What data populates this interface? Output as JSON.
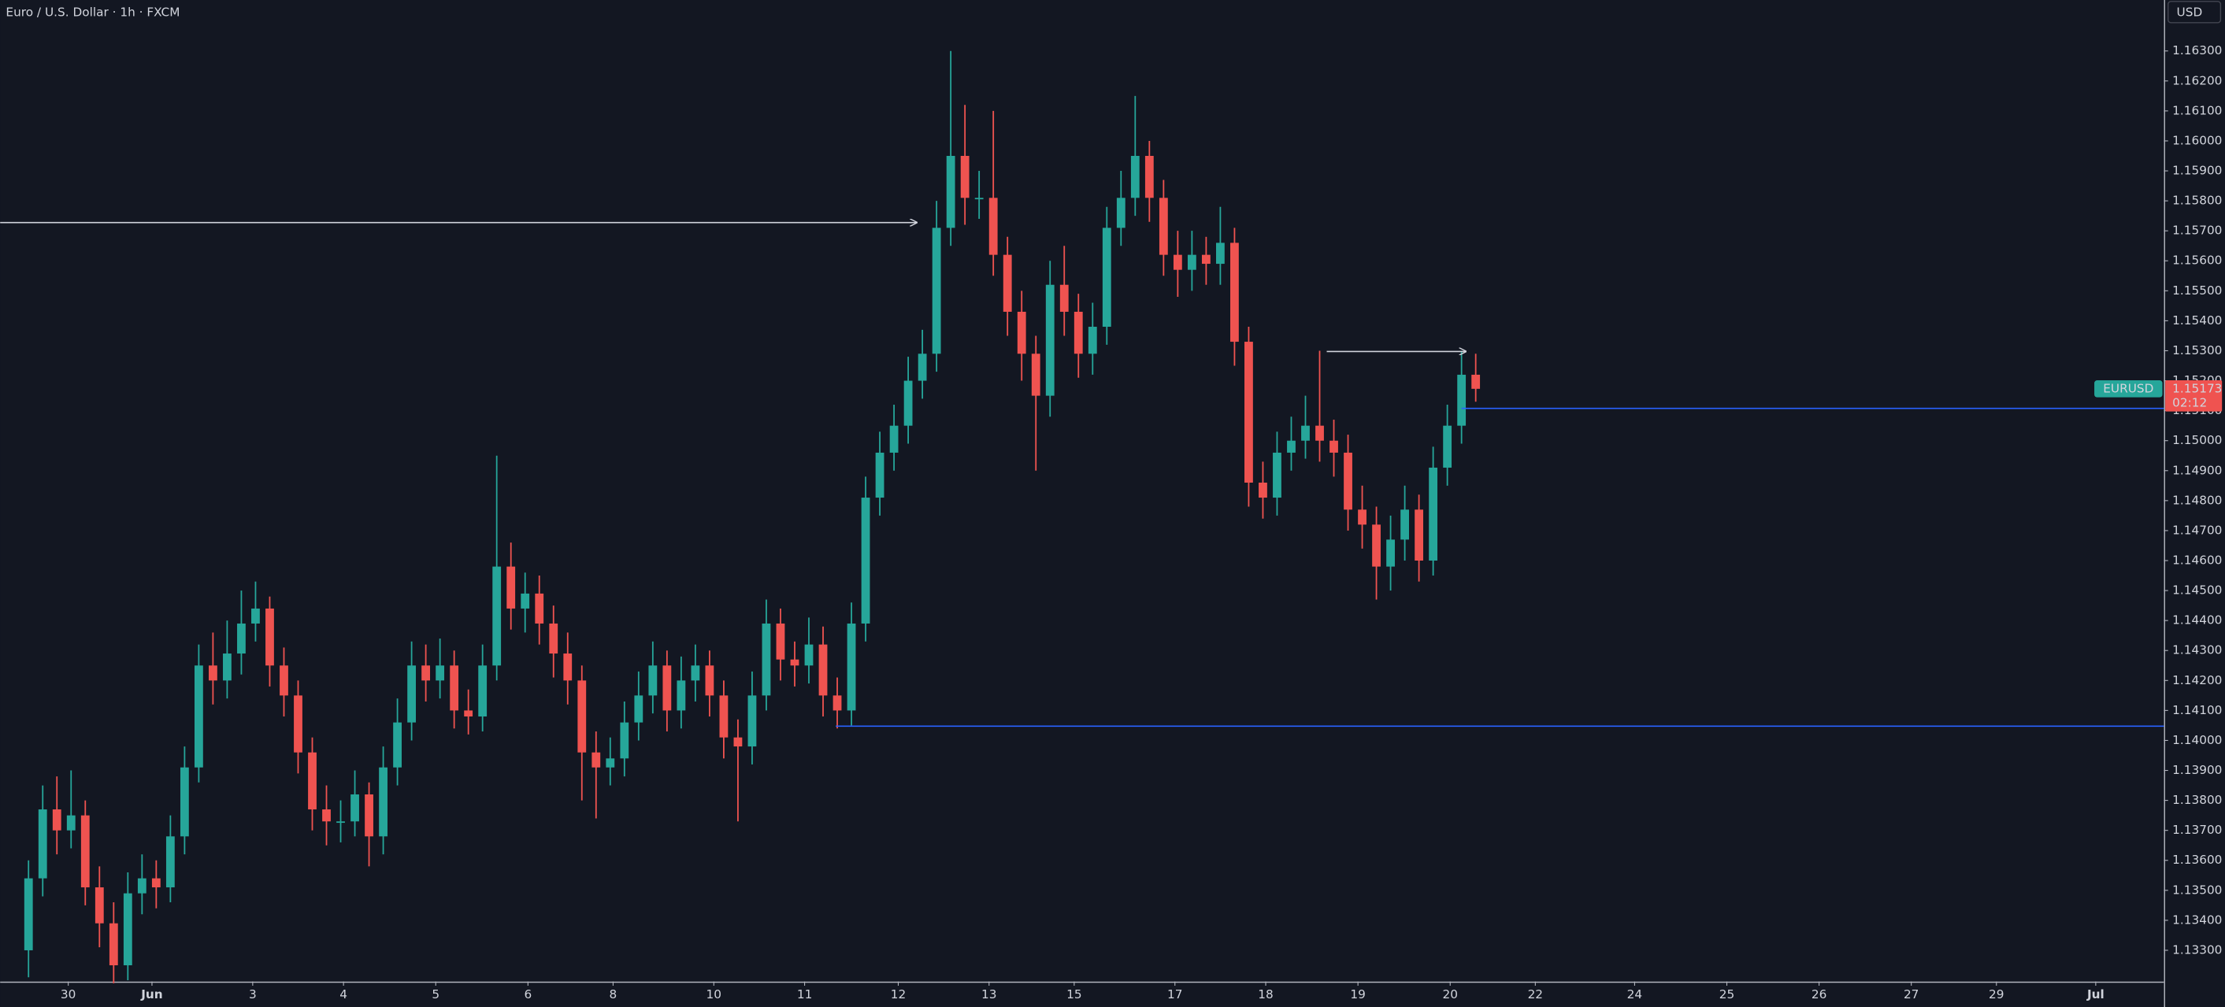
{
  "chart_data": {
    "type": "candlestick",
    "title": "Euro / U.S. Dollar · 1h · FXCM",
    "currency": "USD",
    "symbol": "EURUSD",
    "countdown": "02:12",
    "up_color": "#26a69a",
    "down_color": "#ef5350",
    "xlim": [
      -2,
      150.5
    ],
    "ylim": [
      1.13196,
      1.1647
    ],
    "xticks": [
      {
        "value": 2.8,
        "label": "30"
      },
      {
        "value": 8.7,
        "label": "Jun"
      },
      {
        "value": 15.8,
        "label": "3"
      },
      {
        "value": 22.2,
        "label": "4"
      },
      {
        "value": 28.7,
        "label": "5"
      },
      {
        "value": 35.2,
        "label": "6"
      },
      {
        "value": 41.2,
        "label": "8"
      },
      {
        "value": 48.3,
        "label": "10"
      },
      {
        "value": 54.7,
        "label": "11"
      },
      {
        "value": 61.3,
        "label": "12"
      },
      {
        "value": 67.7,
        "label": "13"
      },
      {
        "value": 73.7,
        "label": "15"
      },
      {
        "value": 80.8,
        "label": "17"
      },
      {
        "value": 87.2,
        "label": "18"
      },
      {
        "value": 93.7,
        "label": "19"
      },
      {
        "value": 100.2,
        "label": "20"
      },
      {
        "value": 106.2,
        "label": "22"
      },
      {
        "value": 113.2,
        "label": "24"
      },
      {
        "value": 119.7,
        "label": "25"
      },
      {
        "value": 126.2,
        "label": "26"
      },
      {
        "value": 132.7,
        "label": "27"
      },
      {
        "value": 138.7,
        "label": "29"
      },
      {
        "value": 145.7,
        "label": "Jul"
      }
    ],
    "yticks": [
      {
        "value": 1.133,
        "label": "1.13300"
      },
      {
        "value": 1.134,
        "label": "1.13400"
      },
      {
        "value": 1.135,
        "label": "1.13500"
      },
      {
        "value": 1.136,
        "label": "1.13600"
      },
      {
        "value": 1.137,
        "label": "1.13700"
      },
      {
        "value": 1.138,
        "label": "1.13800"
      },
      {
        "value": 1.139,
        "label": "1.13900"
      },
      {
        "value": 1.14,
        "label": "1.14000"
      },
      {
        "value": 1.141,
        "label": "1.14100"
      },
      {
        "value": 1.142,
        "label": "1.14200"
      },
      {
        "value": 1.143,
        "label": "1.14300"
      },
      {
        "value": 1.144,
        "label": "1.14400"
      },
      {
        "value": 1.145,
        "label": "1.14500"
      },
      {
        "value": 1.146,
        "label": "1.14600"
      },
      {
        "value": 1.147,
        "label": "1.14700"
      },
      {
        "value": 1.148,
        "label": "1.14800"
      },
      {
        "value": 1.149,
        "label": "1.14900"
      },
      {
        "value": 1.15,
        "label": "1.15000"
      },
      {
        "value": 1.151,
        "label": "1.15100"
      },
      {
        "value": 1.152,
        "label": "1.15200"
      },
      {
        "value": 1.153,
        "label": "1.15300"
      },
      {
        "value": 1.154,
        "label": "1.15400"
      },
      {
        "value": 1.155,
        "label": "1.15500"
      },
      {
        "value": 1.156,
        "label": "1.15600"
      },
      {
        "value": 1.157,
        "label": "1.15700"
      },
      {
        "value": 1.158,
        "label": "1.15800"
      },
      {
        "value": 1.159,
        "label": "1.15900"
      },
      {
        "value": 1.16,
        "label": "1.16000"
      },
      {
        "value": 1.161,
        "label": "1.16100"
      },
      {
        "value": 1.162,
        "label": "1.16200"
      },
      {
        "value": 1.163,
        "label": "1.16300"
      }
    ],
    "x": [
      0,
      1,
      2,
      3,
      4,
      5,
      6,
      7,
      8,
      9,
      10,
      11,
      12,
      13,
      14,
      15,
      16,
      17,
      18,
      19,
      20,
      21,
      22,
      23,
      24,
      25,
      26,
      27,
      28,
      29,
      30,
      31,
      32,
      33,
      34,
      35,
      36,
      37,
      38,
      39,
      40,
      41,
      42,
      43,
      44,
      45,
      46,
      47,
      48,
      49,
      50,
      51,
      52,
      53,
      54,
      55,
      56,
      57,
      58,
      59,
      60,
      61,
      62,
      63,
      64,
      65,
      66,
      67,
      68,
      69,
      70,
      71,
      72,
      73,
      74,
      75,
      76,
      77,
      78,
      79,
      80,
      81,
      82,
      83,
      84,
      85,
      86,
      87,
      88,
      89,
      90,
      91,
      92,
      93,
      94,
      95,
      96,
      97,
      98,
      99,
      100,
      101,
      102
    ],
    "open": [
      1.133,
      1.1354,
      1.1377,
      1.137,
      1.1375,
      1.1351,
      1.1339,
      1.1325,
      1.1349,
      1.1354,
      1.1351,
      1.1368,
      1.1391,
      1.1425,
      1.142,
      1.1429,
      1.1439,
      1.1444,
      1.1425,
      1.1415,
      1.1396,
      1.1377,
      1.1373,
      1.1373,
      1.1382,
      1.1368,
      1.1391,
      1.1406,
      1.1425,
      1.142,
      1.1425,
      1.141,
      1.1408,
      1.1425,
      1.1458,
      1.1444,
      1.1449,
      1.1439,
      1.1429,
      1.142,
      1.1396,
      1.1391,
      1.1394,
      1.1406,
      1.1415,
      1.1425,
      1.141,
      1.142,
      1.1425,
      1.1415,
      1.1401,
      1.1398,
      1.1415,
      1.1439,
      1.1427,
      1.1425,
      1.1432,
      1.1415,
      1.141,
      1.1439,
      1.1481,
      1.1496,
      1.1505,
      1.152,
      1.1529,
      1.1571,
      1.1595,
      1.1581,
      1.1581,
      1.1562,
      1.1543,
      1.1529,
      1.1515,
      1.1552,
      1.1543,
      1.1529,
      1.1538,
      1.1571,
      1.1581,
      1.1595,
      1.1581,
      1.1562,
      1.1557,
      1.1562,
      1.1559,
      1.1566,
      1.1533,
      1.1486,
      1.1481,
      1.1496,
      1.15,
      1.1505,
      1.15,
      1.1496,
      1.1477,
      1.1472,
      1.1458,
      1.1467,
      1.1477,
      1.146,
      1.1491,
      1.1505,
      1.1522
    ],
    "high": [
      1.136,
      1.1385,
      1.1388,
      1.139,
      1.138,
      1.1358,
      1.1346,
      1.1356,
      1.1362,
      1.136,
      1.1375,
      1.1398,
      1.1432,
      1.1436,
      1.144,
      1.145,
      1.1453,
      1.1448,
      1.1431,
      1.142,
      1.1401,
      1.1385,
      1.138,
      1.139,
      1.1386,
      1.1398,
      1.1414,
      1.1433,
      1.1432,
      1.1434,
      1.143,
      1.1417,
      1.1432,
      1.1495,
      1.1466,
      1.1456,
      1.1455,
      1.1445,
      1.1436,
      1.1425,
      1.1403,
      1.1401,
      1.1413,
      1.1423,
      1.1433,
      1.143,
      1.1428,
      1.1432,
      1.143,
      1.142,
      1.1407,
      1.1423,
      1.1447,
      1.1444,
      1.1433,
      1.1441,
      1.1438,
      1.1421,
      1.1446,
      1.1488,
      1.1503,
      1.1512,
      1.1528,
      1.1537,
      1.158,
      1.163,
      1.1612,
      1.159,
      1.161,
      1.1568,
      1.155,
      1.1535,
      1.156,
      1.1565,
      1.1549,
      1.1546,
      1.1578,
      1.159,
      1.1615,
      1.16,
      1.1587,
      1.157,
      1.157,
      1.1568,
      1.1578,
      1.1571,
      1.1538,
      1.1493,
      1.1503,
      1.1508,
      1.1515,
      1.153,
      1.1507,
      1.1502,
      1.1485,
      1.1478,
      1.1475,
      1.1485,
      1.1482,
      1.1498,
      1.1512,
      1.153,
      1.1529
    ],
    "low": [
      1.1321,
      1.1348,
      1.1362,
      1.1364,
      1.1345,
      1.1331,
      1.1319,
      1.132,
      1.1342,
      1.1344,
      1.1346,
      1.1362,
      1.1386,
      1.1412,
      1.1414,
      1.1422,
      1.1433,
      1.1418,
      1.1408,
      1.1389,
      1.137,
      1.1365,
      1.1366,
      1.1368,
      1.1358,
      1.1362,
      1.1385,
      1.14,
      1.1413,
      1.1414,
      1.1404,
      1.1402,
      1.1403,
      1.142,
      1.1437,
      1.1436,
      1.1432,
      1.1421,
      1.1412,
      1.138,
      1.1374,
      1.1385,
      1.1388,
      1.14,
      1.1409,
      1.1403,
      1.1404,
      1.1413,
      1.1408,
      1.1394,
      1.1373,
      1.1392,
      1.141,
      1.142,
      1.1418,
      1.1419,
      1.1408,
      1.1404,
      1.1405,
      1.1433,
      1.1475,
      1.149,
      1.1499,
      1.1514,
      1.1523,
      1.1565,
      1.1572,
      1.1574,
      1.1555,
      1.1535,
      1.152,
      1.149,
      1.1508,
      1.1535,
      1.1521,
      1.1522,
      1.1532,
      1.1565,
      1.1575,
      1.1573,
      1.1555,
      1.1548,
      1.155,
      1.1552,
      1.1552,
      1.1525,
      1.1478,
      1.1474,
      1.1475,
      1.149,
      1.1494,
      1.1493,
      1.1488,
      1.147,
      1.1464,
      1.1447,
      1.145,
      1.146,
      1.1453,
      1.1455,
      1.1485,
      1.1499,
      1.1513
    ],
    "close": [
      1.1354,
      1.1377,
      1.137,
      1.1375,
      1.1351,
      1.1339,
      1.1325,
      1.1349,
      1.1354,
      1.1351,
      1.1368,
      1.1391,
      1.1425,
      1.142,
      1.1429,
      1.1439,
      1.1444,
      1.1425,
      1.1415,
      1.1396,
      1.1377,
      1.1373,
      1.1373,
      1.1382,
      1.1368,
      1.1391,
      1.1406,
      1.1425,
      1.142,
      1.1425,
      1.141,
      1.1408,
      1.1425,
      1.1458,
      1.1444,
      1.1449,
      1.1439,
      1.1429,
      1.142,
      1.1396,
      1.1391,
      1.1394,
      1.1406,
      1.1415,
      1.1425,
      1.141,
      1.142,
      1.1425,
      1.1415,
      1.1401,
      1.1398,
      1.1415,
      1.1439,
      1.1427,
      1.1425,
      1.1432,
      1.1415,
      1.141,
      1.1439,
      1.1481,
      1.1496,
      1.1505,
      1.152,
      1.1529,
      1.1571,
      1.1595,
      1.1581,
      1.1581,
      1.1562,
      1.1543,
      1.1529,
      1.1515,
      1.1552,
      1.1543,
      1.1529,
      1.1538,
      1.1571,
      1.1581,
      1.1595,
      1.1581,
      1.1562,
      1.1557,
      1.1562,
      1.1559,
      1.1566,
      1.1533,
      1.1486,
      1.1481,
      1.1496,
      1.15,
      1.1505,
      1.15,
      1.1496,
      1.1477,
      1.1472,
      1.1458,
      1.1467,
      1.1477,
      1.146,
      1.1491,
      1.1505,
      1.1522,
      1.15173
    ],
    "lines": [
      {
        "x": [
          -2,
          62.6
        ],
        "y": 1.1573,
        "color": "#d1d4dc",
        "arrow": true
      },
      {
        "x": [
          91.5,
          101.3
        ],
        "y": 1.153,
        "color": "#d1d4dc",
        "arrow": true
      },
      {
        "x": [
          101,
          150.5
        ],
        "y": 1.1511,
        "color": "#2962ff",
        "arrow": false
      },
      {
        "x": [
          56.9,
          150.5
        ],
        "y": 1.1405,
        "color": "#2962ff",
        "arrow": false
      }
    ]
  }
}
